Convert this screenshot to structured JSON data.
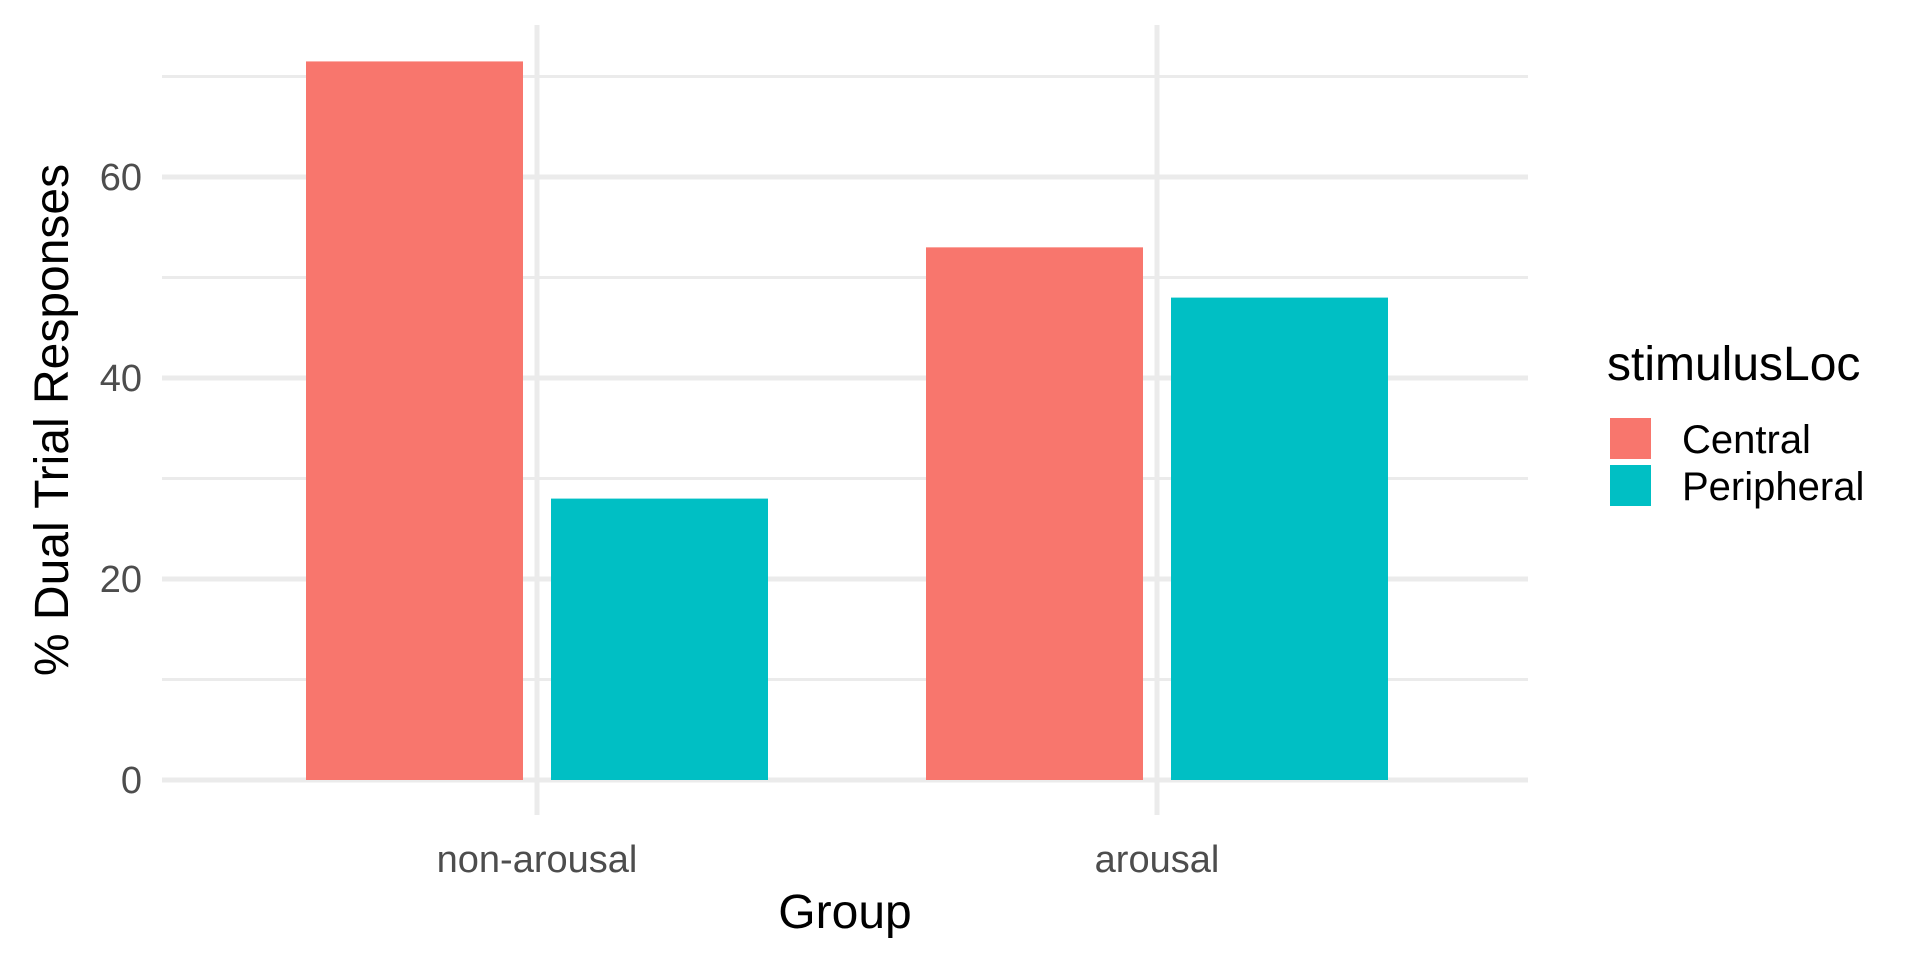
{
  "chart_data": {
    "type": "bar",
    "title": "",
    "xlabel": "Group",
    "ylabel": "% Dual Trial Responses",
    "categories": [
      "non-arousal",
      "arousal"
    ],
    "series": [
      {
        "name": "Central",
        "values": [
          71.5,
          53
        ],
        "color": "#F8766D"
      },
      {
        "name": "Peripheral",
        "values": [
          28,
          48
        ],
        "color": "#00BFC4"
      }
    ],
    "ylim": [
      0,
      75
    ],
    "y_ticks": [
      0,
      20,
      40,
      60
    ],
    "y_tick_labels": [
      "0",
      "20",
      "40",
      "60"
    ],
    "grid": true,
    "legend": {
      "title": "stimulusLoc",
      "position": "right",
      "entries": [
        "Central",
        "Peripheral"
      ]
    }
  }
}
